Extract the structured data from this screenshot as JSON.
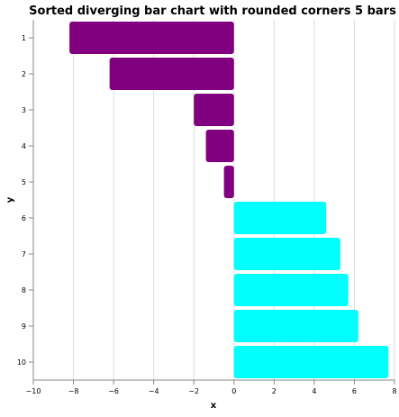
{
  "chart_data": {
    "type": "bar",
    "orientation": "horizontal",
    "title": "Sorted diverging bar chart with rounded corners 5 bars",
    "xlabel": "x",
    "ylabel": "y",
    "xlim": [
      -10,
      8
    ],
    "x_ticks": [
      "−10",
      "−8",
      "−6",
      "−4",
      "−2",
      "0",
      "2",
      "4",
      "6",
      "8"
    ],
    "categories": [
      "1",
      "2",
      "3",
      "4",
      "5",
      "6",
      "7",
      "8",
      "9",
      "10"
    ],
    "values": [
      -8.2,
      -6.2,
      -2.0,
      -1.4,
      -0.5,
      4.6,
      5.3,
      5.7,
      6.2,
      7.7
    ],
    "grid": true,
    "colors": {
      "negative": "#800080",
      "positive": "#00ffff"
    }
  }
}
